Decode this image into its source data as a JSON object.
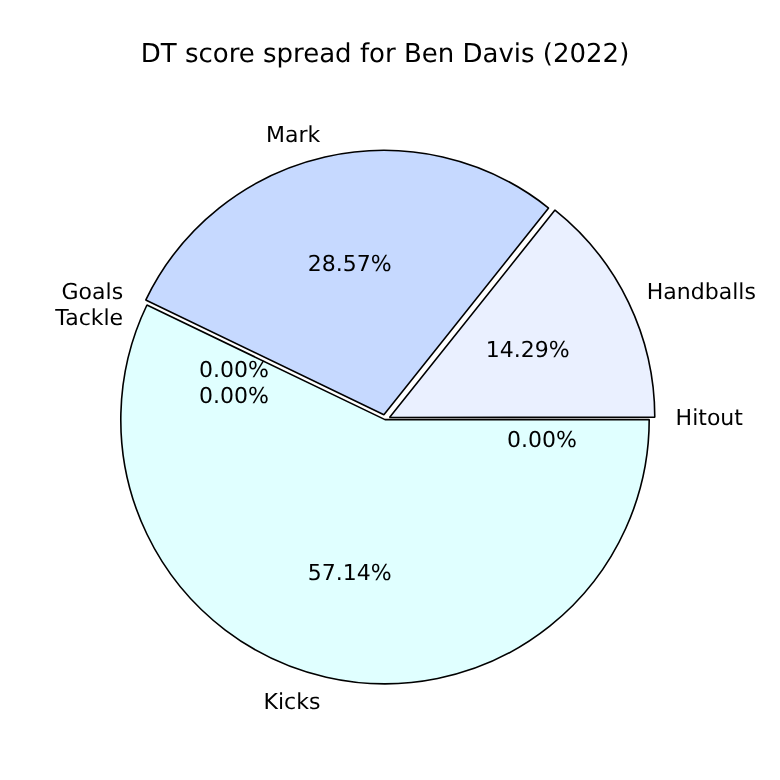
{
  "chart_data": {
    "type": "pie",
    "title": "DT score spread for Ben Davis (2022)",
    "categories": [
      "Hitout",
      "Kicks",
      "Goals",
      "Tackle",
      "Mark",
      "Handballs"
    ],
    "values": [
      0,
      57.14,
      0,
      0,
      28.57,
      14.29
    ],
    "colors": [
      "#f0f8ff",
      "#e0ffff",
      "#f0fff0",
      "#f5f5ff",
      "#c6d9ff",
      "#eaf0ff"
    ],
    "value_labels": [
      "0.00%",
      "57.14%",
      "0.00%",
      "0.00%",
      "28.57%",
      "14.29%"
    ]
  }
}
